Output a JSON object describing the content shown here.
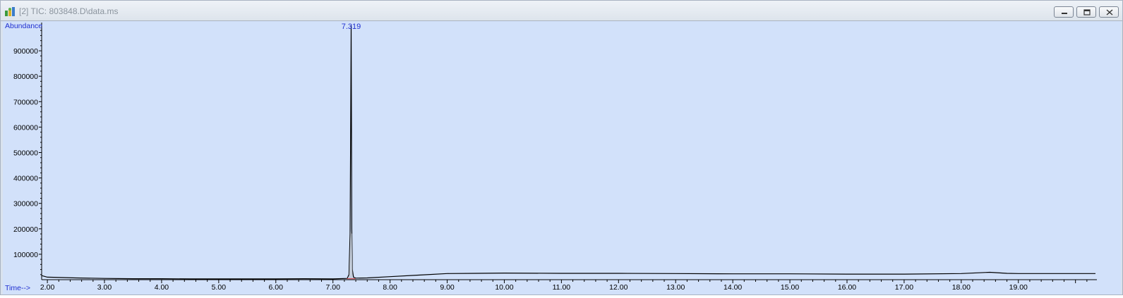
{
  "window": {
    "title": "[2] TIC: 803848.D\\data.ms",
    "buttons": [
      "minimize",
      "restore",
      "close"
    ]
  },
  "colors": {
    "plot_background": "#d2e1fa",
    "trace": "#000000",
    "labels": "#1f2fd0",
    "baseline_marker": "#d0505a"
  },
  "chart_data": {
    "type": "line",
    "title": "",
    "xlabel": "Time-->",
    "ylabel": "Abundance",
    "xlim": [
      1.9,
      20.35
    ],
    "ylim": [
      0,
      1000000
    ],
    "x_ticks": [
      "2.00",
      "3.00",
      "4.00",
      "5.00",
      "6.00",
      "7.00",
      "8.00",
      "9.00",
      "10.00",
      "11.00",
      "12.00",
      "13.00",
      "14.00",
      "15.00",
      "16.00",
      "17.00",
      "18.00",
      "19.00"
    ],
    "y_ticks": [
      "100000",
      "200000",
      "300000",
      "400000",
      "500000",
      "600000",
      "700000",
      "800000",
      "900000"
    ],
    "peak_annotations": [
      {
        "label": "7.319",
        "x": 7.319,
        "y": 1000000
      }
    ],
    "series": [
      {
        "x": [
          1.9,
          2.0,
          2.5,
          3.0,
          3.5,
          4.0,
          4.5,
          5.0,
          5.5,
          6.0,
          6.5,
          7.0,
          7.25,
          7.28,
          7.3,
          7.31,
          7.319,
          7.33,
          7.34,
          7.36,
          7.4,
          7.6,
          8.0,
          8.5,
          9.0,
          9.5,
          10.0,
          11.0,
          12.0,
          13.0,
          14.0,
          15.0,
          16.0,
          17.0,
          18.0,
          18.5,
          18.8,
          19.0,
          20.0,
          20.35
        ],
        "y": [
          16000,
          10000,
          7000,
          5000,
          4000,
          4000,
          3000,
          3000,
          3000,
          3000,
          4000,
          3000,
          5000,
          20000,
          180000,
          600000,
          1000000,
          200000,
          40000,
          10000,
          6000,
          7000,
          12000,
          18000,
          24000,
          25000,
          26000,
          25000,
          25000,
          24000,
          23000,
          23000,
          22000,
          22000,
          24000,
          29000,
          25000,
          24000,
          24000,
          24000
        ]
      }
    ]
  }
}
